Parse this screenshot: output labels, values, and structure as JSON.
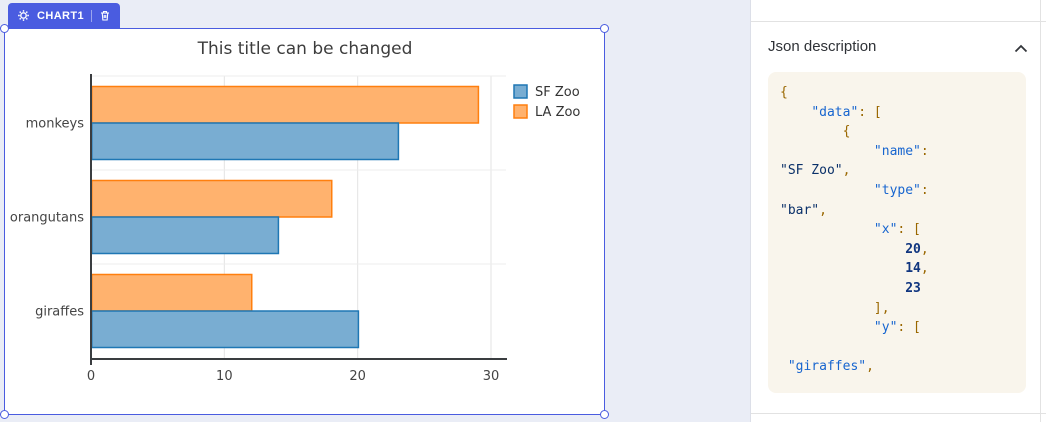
{
  "canvas": {
    "selection_color": "#4a5ce0",
    "tag": {
      "label": "CHART1",
      "icons": [
        "gear-icon",
        "trash-icon"
      ]
    }
  },
  "chart_data": {
    "type": "bar",
    "orientation": "horizontal",
    "title": "This title can be changed",
    "categories": [
      "monkeys",
      "orangutans",
      "giraffes"
    ],
    "series": [
      {
        "name": "SF Zoo",
        "values": [
          23,
          14,
          20
        ],
        "fill": "#79ADD2",
        "stroke": "#1F77B4"
      },
      {
        "name": "LA Zoo",
        "values": [
          29,
          18,
          12
        ],
        "fill": "#FFB26E",
        "stroke": "#FF7F0E"
      }
    ],
    "xticks": [
      0,
      10,
      20,
      30
    ],
    "xlim": [
      0,
      31.1
    ],
    "ylabel": "",
    "xlabel": "",
    "grid": true,
    "legend_position": "top-right",
    "source_order_note": "underlying JSON lists x:[20,14,23] with y:[giraffes,orangutans,monkeys]"
  },
  "json_panel": {
    "title": "Json description",
    "collapse_icon": "chevron-up",
    "code_lines": [
      [
        [
          "p",
          "{"
        ]
      ],
      [
        [
          "x",
          "    "
        ],
        [
          "k",
          "\"data\""
        ],
        [
          "p",
          ": ["
        ]
      ],
      [
        [
          "x",
          "        "
        ],
        [
          "p",
          "{"
        ]
      ],
      [
        [
          "x",
          "            "
        ],
        [
          "k",
          "\"name\""
        ],
        [
          "p",
          ":"
        ]
      ],
      [
        [
          "s",
          "\"SF Zoo\""
        ],
        [
          "p",
          ","
        ]
      ],
      [
        [
          "x",
          "            "
        ],
        [
          "k",
          "\"type\""
        ],
        [
          "p",
          ":"
        ]
      ],
      [
        [
          "s",
          "\"bar\""
        ],
        [
          "p",
          ","
        ]
      ],
      [
        [
          "x",
          "            "
        ],
        [
          "k",
          "\"x\""
        ],
        [
          "p",
          ": ["
        ]
      ],
      [
        [
          "x",
          "                "
        ],
        [
          "n",
          "20"
        ],
        [
          "p",
          ","
        ]
      ],
      [
        [
          "x",
          "                "
        ],
        [
          "n",
          "14"
        ],
        [
          "p",
          ","
        ]
      ],
      [
        [
          "x",
          "                "
        ],
        [
          "n",
          "23"
        ]
      ],
      [
        [
          "x",
          "            "
        ],
        [
          "p",
          "],"
        ]
      ],
      [
        [
          "x",
          "            "
        ],
        [
          "k",
          "\"y\""
        ],
        [
          "p",
          ": ["
        ]
      ],
      [
        [
          "x",
          " "
        ]
      ],
      [
        [
          "x",
          " "
        ],
        [
          "k",
          "\"giraffes\""
        ],
        [
          "p",
          ","
        ]
      ]
    ]
  }
}
